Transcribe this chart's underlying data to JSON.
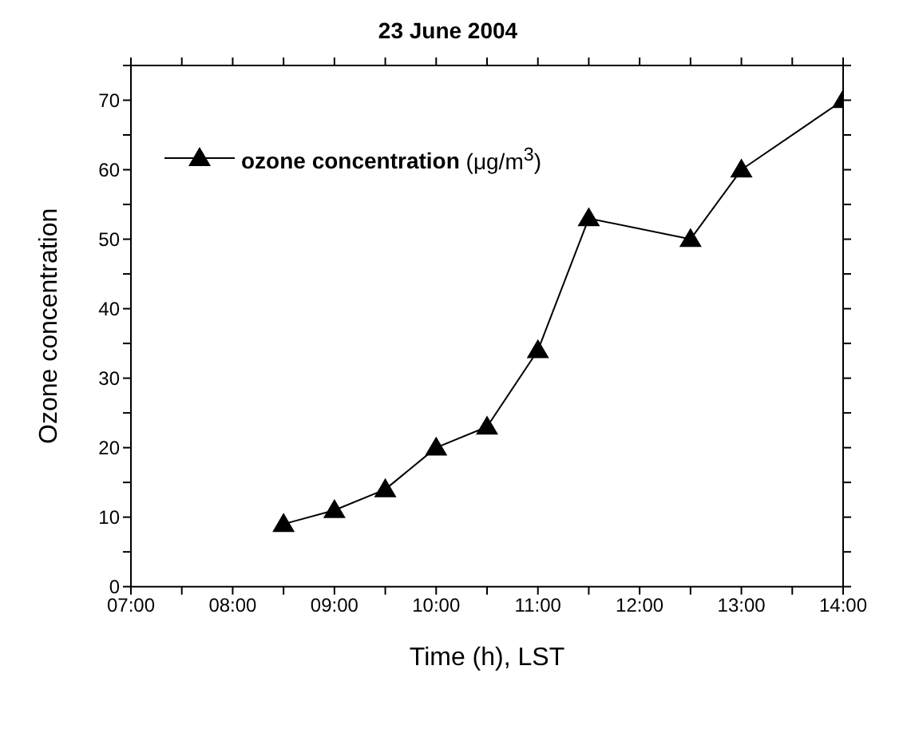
{
  "chart_data": {
    "type": "line",
    "title": "23 June 2004",
    "xlabel": "Time (h), LST",
    "ylabel": "Ozone concentration",
    "x": [
      8.5,
      9,
      9.5,
      10,
      10.5,
      11,
      11.5,
      12.5,
      13,
      14
    ],
    "series": [
      {
        "name": "ozone concentration (μg/m$^{3}$)",
        "color": "#000000",
        "values": [
          9,
          11,
          14,
          20,
          23,
          34,
          53,
          50,
          60,
          70
        ]
      }
    ],
    "xlim": [
      7,
      14
    ],
    "xticks": [
      {
        "value": 7,
        "label": "07:00"
      },
      {
        "value": 7.5,
        "label": null
      },
      {
        "value": 8,
        "label": "08:00"
      },
      {
        "value": 8.5,
        "label": null
      },
      {
        "value": 9,
        "label": "09:00"
      },
      {
        "value": 9.5,
        "label": null
      },
      {
        "value": 10,
        "label": "10:00"
      },
      {
        "value": 10.5,
        "label": null
      },
      {
        "value": 11,
        "label": "11:00"
      },
      {
        "value": 11.5,
        "label": null
      },
      {
        "value": 12,
        "label": "12:00"
      },
      {
        "value": 12.5,
        "label": null
      },
      {
        "value": 13,
        "label": "13:00"
      },
      {
        "value": 13.5,
        "label": null
      },
      {
        "value": 14,
        "label": "14:00"
      }
    ],
    "ylim": [
      0,
      75
    ],
    "yticks": [
      0,
      {
        "value": 5,
        "label": null
      },
      10,
      {
        "value": 15,
        "label": null
      },
      20,
      {
        "value": 25,
        "label": null
      },
      30,
      {
        "value": 35,
        "label": null
      },
      40,
      {
        "value": 45,
        "label": null
      },
      50,
      {
        "value": 55,
        "label": null
      },
      60,
      {
        "value": 65,
        "label": null
      },
      70,
      {
        "value": 75,
        "label": null
      }
    ],
    "grid": false,
    "legend": "top left",
    "marker": "triangle",
    "line_style": "solid"
  }
}
